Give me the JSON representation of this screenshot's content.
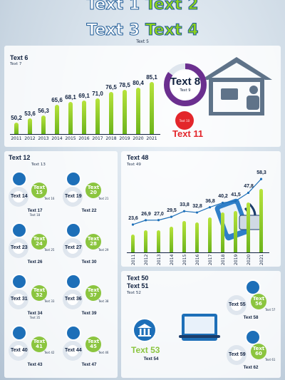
{
  "header": {
    "title_a": "Text 1",
    "title_b": "Text 2",
    "title_c": "Text 3",
    "title_d": "Text 4",
    "subtitle": "Text 5"
  },
  "colors": {
    "accent_green": "#8ed21b",
    "navy": "#10213f",
    "blue": "#1d6fb8",
    "red": "#e3262b",
    "purple": "#6b2f8f"
  },
  "access": {
    "title": "Text 6",
    "subtitle": "Text 7",
    "donut_value": "Text 8",
    "donut_unit": "Text 9",
    "change_years": "Text 10",
    "change_value": "Text 11"
  },
  "usage": {
    "title": "Text 12",
    "subtitle": "Text 13",
    "items": [
      {
        "pct": "Text 14",
        "change": "Text 15",
        "change_years": "Text 16",
        "label": "Text 17",
        "sub": "Text 18",
        "icon": "news-icon"
      },
      {
        "pct": "Text 19",
        "change": "Text 20",
        "change_years": "Text 21",
        "label": "Text 22",
        "sub": "",
        "icon": "info-icon"
      },
      {
        "pct": "Text 23",
        "change": "Text 24",
        "change_years": "Text 25",
        "label": "Text 26",
        "sub": "",
        "icon": "video-call-icon"
      },
      {
        "pct": "Text 27",
        "change": "Text 28",
        "change_years": "Text 29",
        "label": "Text 30",
        "sub": "",
        "icon": "email-icon"
      },
      {
        "pct": "Text 31",
        "change": "Text 32",
        "change_years": "Text 33",
        "label": "Text 34",
        "sub": "Text 35",
        "icon": "message-icon"
      },
      {
        "pct": "Text 36",
        "change": "Text 37",
        "change_years": "Text 38",
        "label": "Text 39",
        "sub": "",
        "icon": "social-network-icon"
      },
      {
        "pct": "Text 40",
        "change": "Text 41",
        "change_years": "Text 42",
        "label": "Text 43",
        "sub": "",
        "icon": "health-icon"
      },
      {
        "pct": "Text 44",
        "change": "Text 45",
        "change_years": "Text 46",
        "label": "Text 47",
        "sub": "",
        "icon": "bank-icon"
      }
    ]
  },
  "ecommerce": {
    "title": "Text 48",
    "subtitle": "Text 49"
  },
  "egov": {
    "title": "Text 50",
    "period": "Text 51",
    "subtitle": "Text 52",
    "main_pct": "Text 53",
    "main_label": "Text 54",
    "items": [
      {
        "pct": "Text 55",
        "change": "Text 56",
        "change_years": "Text 57",
        "label": "Text 58",
        "icon": "printer-icon"
      },
      {
        "pct": "Text 59",
        "change": "Text 60",
        "change_years": "Text 61",
        "label": "Text 62",
        "icon": "certificate-icon"
      }
    ]
  },
  "chart_data": [
    {
      "type": "bar",
      "title": "Text 6",
      "categories": [
        "2011",
        "2012",
        "2013",
        "2014",
        "2015",
        "2016",
        "2017",
        "2018",
        "2019",
        "2020",
        "2021"
      ],
      "values": [
        50.2,
        53.6,
        56.3,
        65.6,
        68.1,
        69.1,
        71.0,
        76.5,
        78.5,
        80.4,
        85.1
      ]
    },
    {
      "type": "bar",
      "title": "Text 48",
      "categories": [
        "2011",
        "2012",
        "2013",
        "2014",
        "2015",
        "2016",
        "2017",
        "2018",
        "2019",
        "2020",
        "2021"
      ],
      "values": [
        23.6,
        26.9,
        27.0,
        29.5,
        33.8,
        32.8,
        36.8,
        40.2,
        41.5,
        47.8,
        58.3
      ]
    }
  ]
}
